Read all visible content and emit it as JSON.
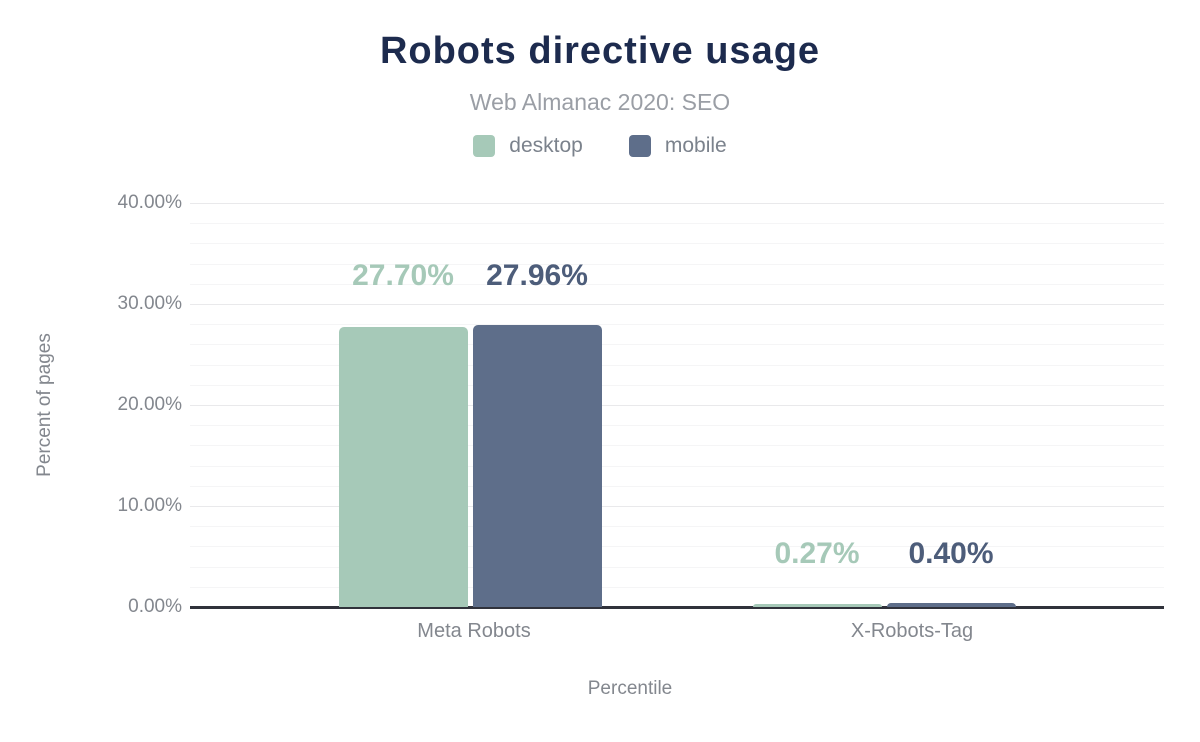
{
  "header": {
    "title": "Robots directive usage",
    "subtitle": "Web Almanac 2020: SEO"
  },
  "legend": {
    "items": [
      {
        "label": "desktop",
        "color": "#a6c9b8"
      },
      {
        "label": "mobile",
        "color": "#5e6e8a"
      }
    ]
  },
  "axes": {
    "y_title": "Percent of pages",
    "x_title": "Percentile"
  },
  "colors": {
    "title_navy": "#1d2b4e",
    "subtitle_gray": "#9a9ea5",
    "axis_text_gray": "#83878e",
    "axis_line": "#30323b",
    "major_gridline": "#e9e9eb",
    "minor_gridline": "#f5f5f6"
  },
  "chart_data": {
    "type": "bar",
    "title": "Robots directive usage",
    "subtitle": "Web Almanac 2020: SEO",
    "categories": [
      "Meta Robots",
      "X-Robots-Tag"
    ],
    "series": [
      {
        "name": "desktop",
        "color": "#a6c9b8",
        "label_color": "#a6c9b8",
        "values": [
          27.7,
          0.27
        ],
        "labels": [
          "27.70%",
          "0.27%"
        ]
      },
      {
        "name": "mobile",
        "color": "#5e6e8a",
        "label_color": "#4d5d7a",
        "values": [
          27.96,
          0.4
        ],
        "labels": [
          "27.96%",
          "0.40%"
        ]
      }
    ],
    "xlabel": "Percentile",
    "ylabel": "Percent of pages",
    "ylim": [
      0,
      40
    ],
    "y_ticks": [
      {
        "value": 0,
        "label": "0.00%"
      },
      {
        "value": 10,
        "label": "10.00%"
      },
      {
        "value": 20,
        "label": "20.00%"
      },
      {
        "value": 30,
        "label": "30.00%"
      },
      {
        "value": 40,
        "label": "40.00%"
      }
    ],
    "y_minor_step": 2,
    "grid": true,
    "legend_position": "top"
  }
}
